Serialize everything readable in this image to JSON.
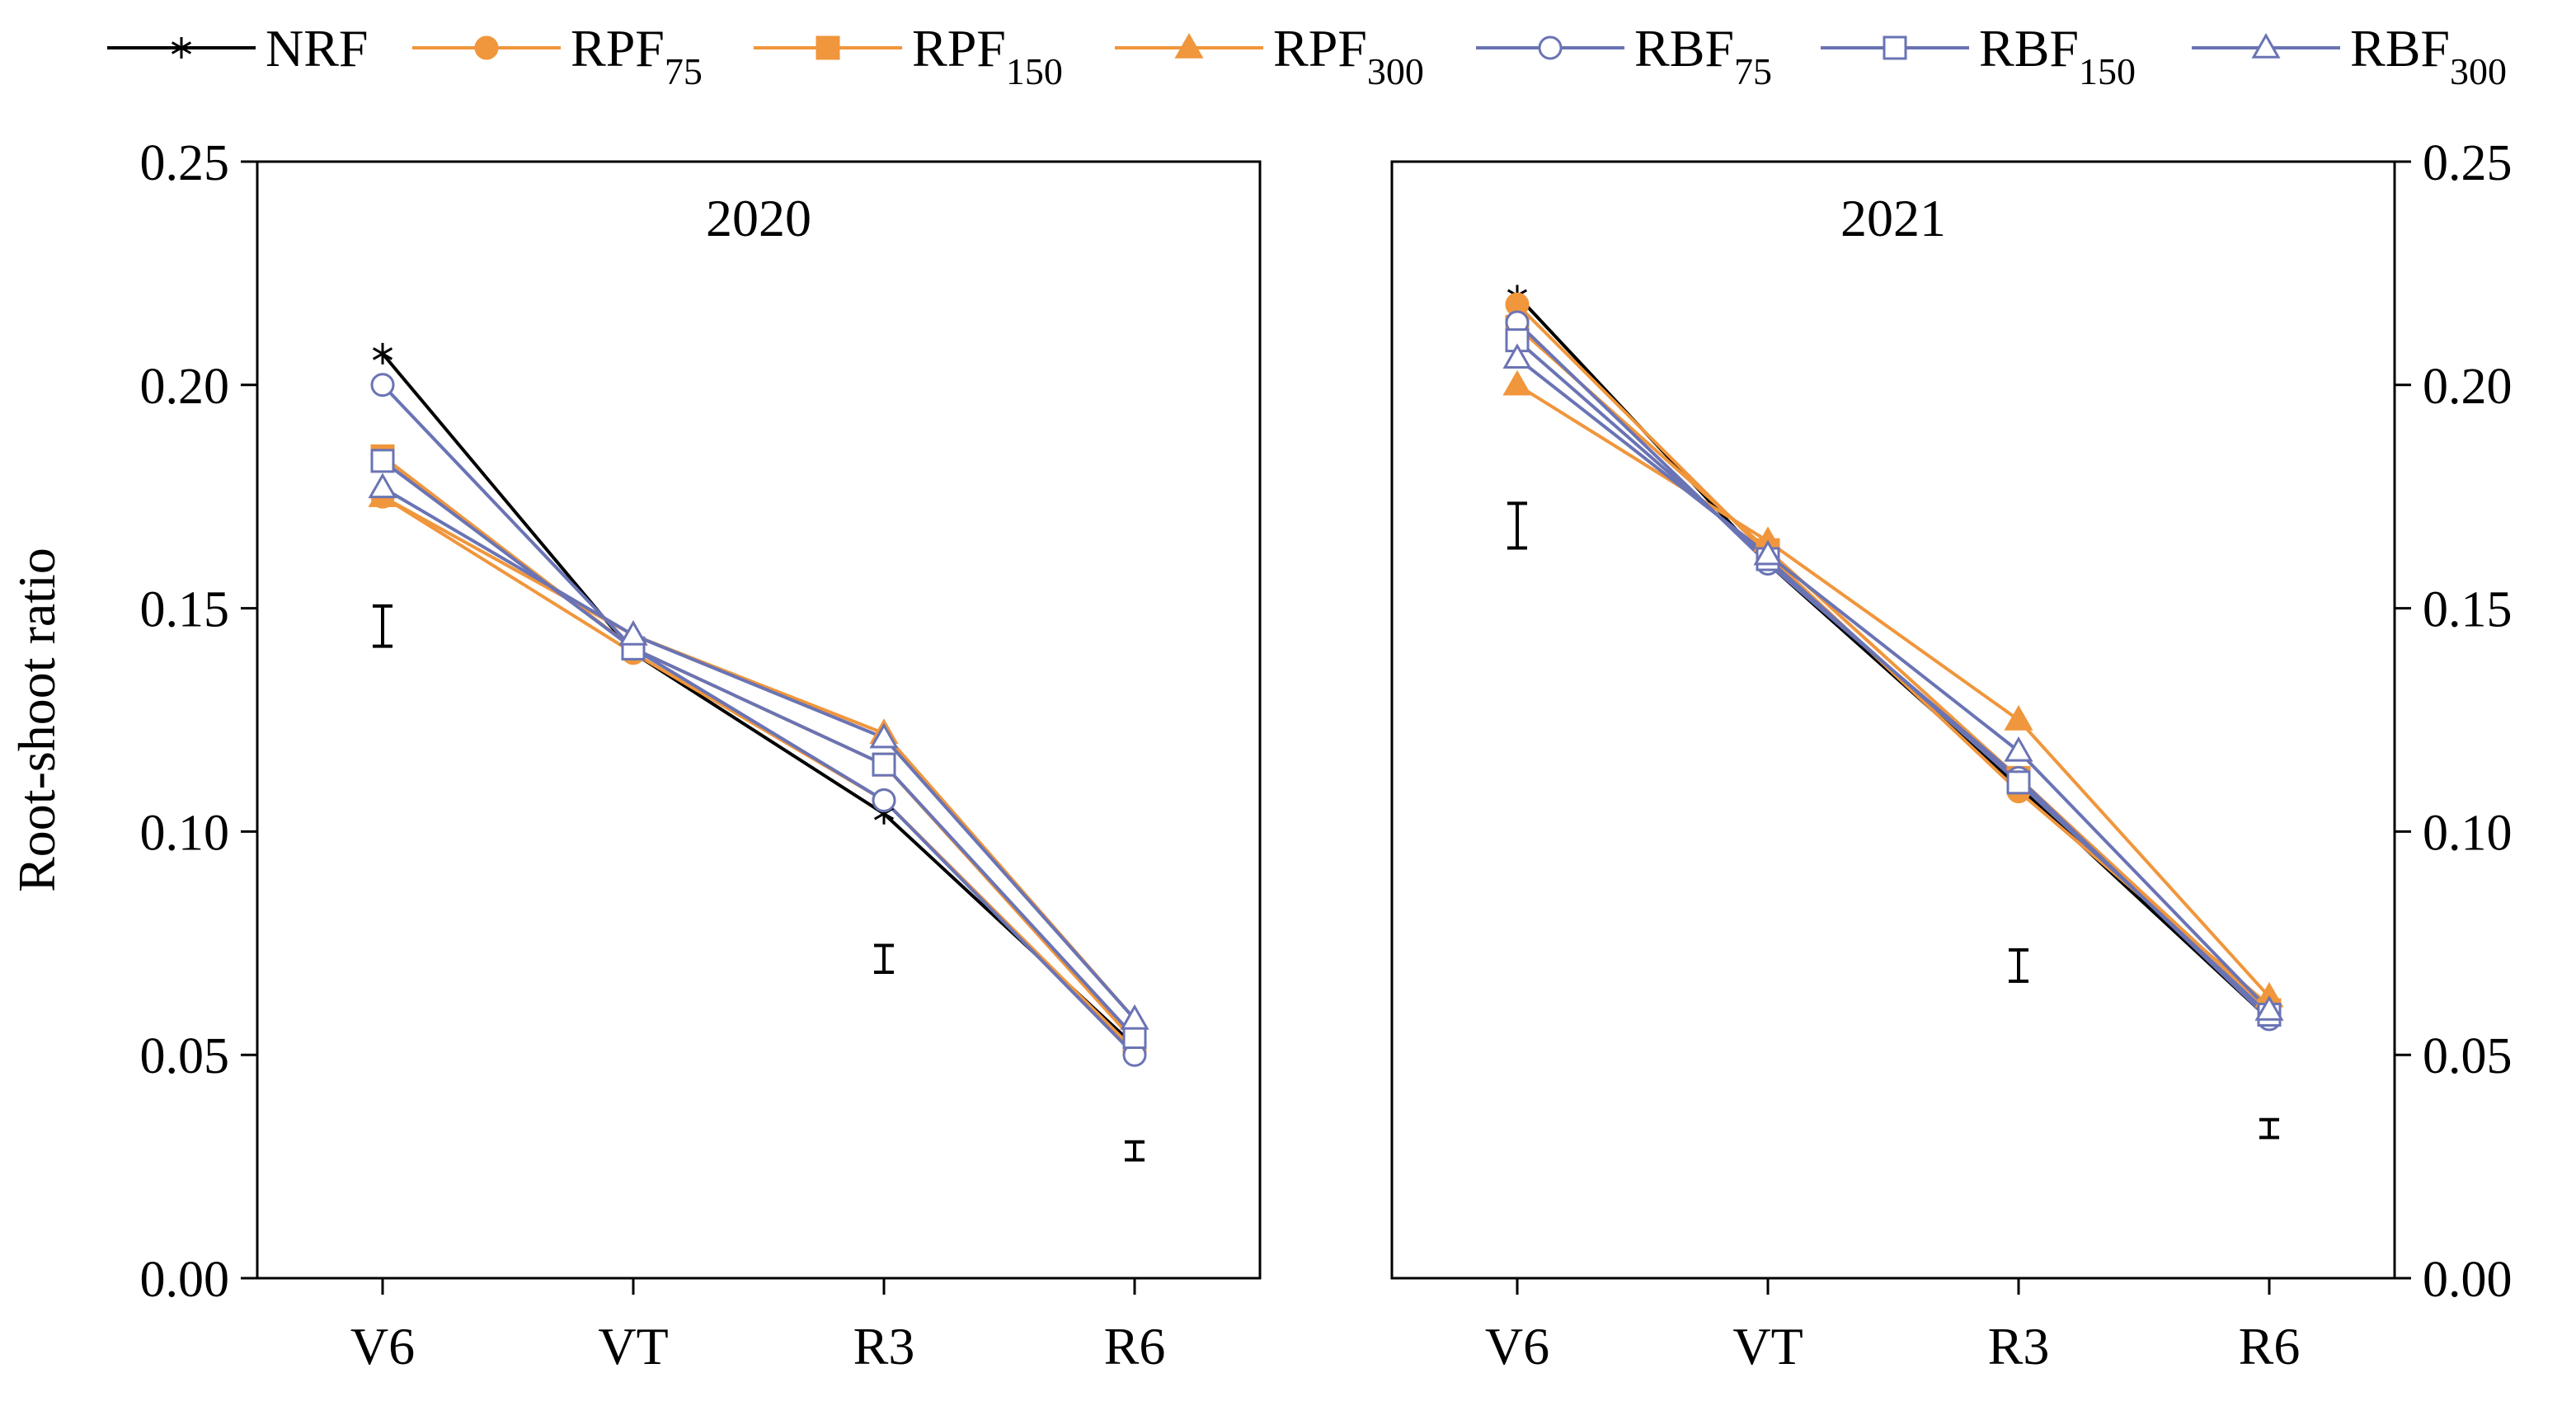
{
  "colors": {
    "NRF": "#000000",
    "RPF": "#F0963C",
    "RBF": "#6A74B4",
    "axis": "#000000"
  },
  "chart_data": [
    {
      "type": "line",
      "title": "2020",
      "xlabel": "",
      "ylabel": "Root-shoot ratio",
      "ylim": [
        0,
        0.25
      ],
      "yticks": [
        "0.00",
        "0.05",
        "0.10",
        "0.15",
        "0.20",
        "0.25"
      ],
      "y_axis_side": "left",
      "categories": [
        "V6",
        "VT",
        "R3",
        "R6"
      ],
      "series": [
        {
          "key": "NRF",
          "name": "NRF",
          "base": "NRF",
          "sub": "",
          "marker": "asterisk",
          "values": [
            0.207,
            0.14,
            0.104,
            0.052
          ]
        },
        {
          "key": "RPF75",
          "name": "RPF75",
          "base": "RPF",
          "sub": "75",
          "marker": "circle-filled",
          "values": [
            0.175,
            0.14,
            0.107,
            0.051
          ]
        },
        {
          "key": "RPF150",
          "name": "RPF150",
          "base": "RPF",
          "sub": "150",
          "marker": "square-filled",
          "values": [
            0.184,
            0.141,
            0.115,
            0.053
          ]
        },
        {
          "key": "RPF300",
          "name": "RPF300",
          "base": "RPF",
          "sub": "300",
          "marker": "triangle-filled",
          "values": [
            0.175,
            0.144,
            0.122,
            0.058
          ]
        },
        {
          "key": "RBF75",
          "name": "RBF75",
          "base": "RBF",
          "sub": "75",
          "marker": "circle-open",
          "values": [
            0.2,
            0.141,
            0.107,
            0.05
          ]
        },
        {
          "key": "RBF150",
          "name": "RBF150",
          "base": "RBF",
          "sub": "150",
          "marker": "square-open",
          "values": [
            0.183,
            0.141,
            0.115,
            0.054
          ]
        },
        {
          "key": "RBF300",
          "name": "RBF300",
          "base": "RBF",
          "sub": "300",
          "marker": "triangle-open",
          "values": [
            0.177,
            0.144,
            0.121,
            0.058
          ]
        }
      ],
      "error_bars": [
        {
          "category": "V6",
          "low": 0.1415,
          "high": 0.1505
        },
        {
          "category": "R3",
          "low": 0.0685,
          "high": 0.0745
        },
        {
          "category": "R6",
          "low": 0.0265,
          "high": 0.0305
        }
      ]
    },
    {
      "type": "line",
      "title": "2021",
      "xlabel": "",
      "ylabel": "",
      "ylim": [
        0,
        0.25
      ],
      "yticks": [
        "0.00",
        "0.05",
        "0.10",
        "0.15",
        "0.20",
        "0.25"
      ],
      "y_axis_side": "right",
      "categories": [
        "V6",
        "VT",
        "R3",
        "R6"
      ],
      "series": [
        {
          "key": "NRF",
          "name": "NRF",
          "base": "NRF",
          "sub": "",
          "marker": "asterisk",
          "values": [
            0.22,
            0.16,
            0.11,
            0.058
          ]
        },
        {
          "key": "RPF75",
          "name": "RPF75",
          "base": "RPF",
          "sub": "75",
          "marker": "circle-filled",
          "values": [
            0.218,
            0.162,
            0.109,
            0.061
          ]
        },
        {
          "key": "RPF150",
          "name": "RPF150",
          "base": "RPF",
          "sub": "150",
          "marker": "square-filled",
          "values": [
            0.213,
            0.163,
            0.112,
            0.06
          ]
        },
        {
          "key": "RPF300",
          "name": "RPF300",
          "base": "RPF",
          "sub": "300",
          "marker": "triangle-filled",
          "values": [
            0.2,
            0.165,
            0.125,
            0.063
          ]
        },
        {
          "key": "RBF75",
          "name": "RBF75",
          "base": "RBF",
          "sub": "75",
          "marker": "circle-open",
          "values": [
            0.214,
            0.16,
            0.112,
            0.058
          ]
        },
        {
          "key": "RBF150",
          "name": "RBF150",
          "base": "RBF",
          "sub": "150",
          "marker": "square-open",
          "values": [
            0.21,
            0.161,
            0.111,
            0.059
          ]
        },
        {
          "key": "RBF300",
          "name": "RBF300",
          "base": "RBF",
          "sub": "300",
          "marker": "triangle-open",
          "values": [
            0.206,
            0.162,
            0.118,
            0.06
          ]
        }
      ],
      "error_bars": [
        {
          "category": "V6",
          "low": 0.1635,
          "high": 0.1735
        },
        {
          "category": "R3",
          "low": 0.0665,
          "high": 0.0735
        },
        {
          "category": "R6",
          "low": 0.0315,
          "high": 0.0355
        }
      ]
    }
  ]
}
